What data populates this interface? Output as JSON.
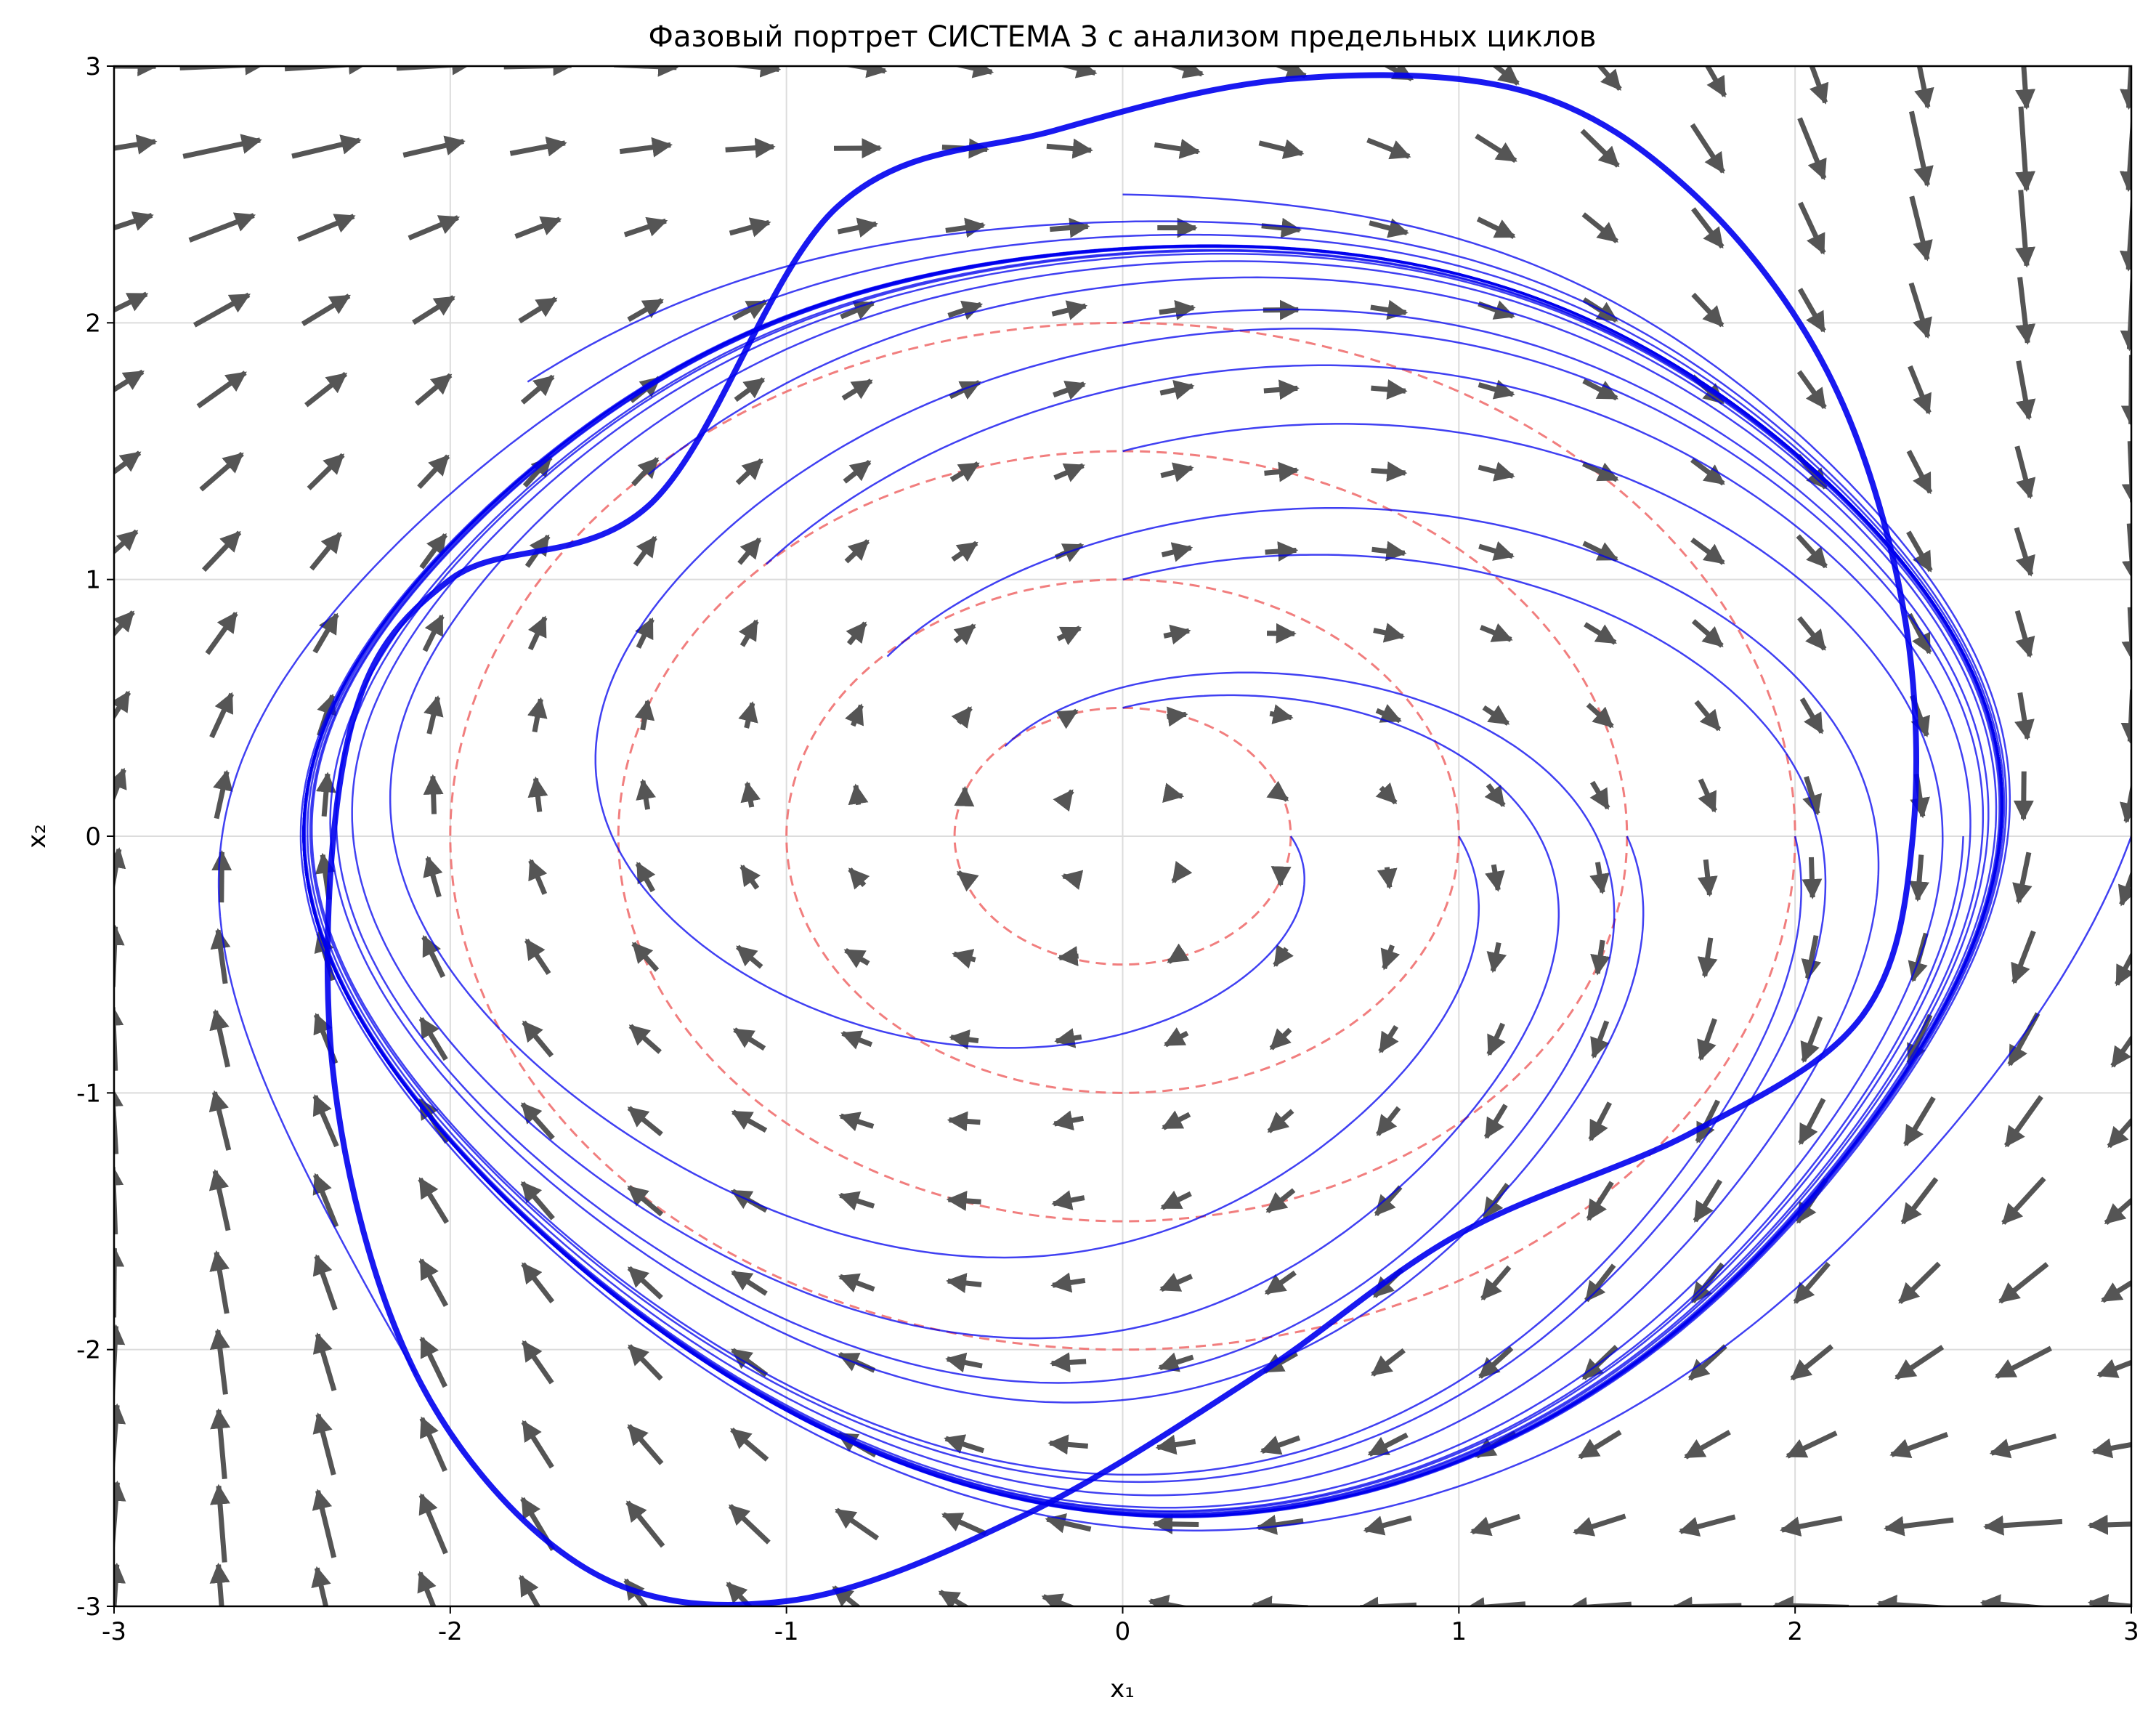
{
  "chart_data": {
    "type": "phase_portrait",
    "title": "Фазовый портрет СИСТЕМА 3 с анализом предельных циклов",
    "xlabel": "x₁",
    "ylabel": "x₂",
    "xlim": [
      -3,
      3
    ],
    "ylim": [
      -3,
      3
    ],
    "x_ticks": [
      -3,
      -2,
      -1,
      0,
      1,
      2,
      3
    ],
    "y_ticks": [
      -3,
      -2,
      -1,
      0,
      1,
      2,
      3
    ],
    "x_tick_labels": [
      "-3",
      "-2",
      "-1",
      "0",
      "1",
      "2",
      "3"
    ],
    "y_tick_labels": [
      "-3",
      "-2",
      "-1",
      "0",
      "1",
      "2",
      "3"
    ],
    "grid": true,
    "reference_circles": {
      "radii": [
        0.5,
        1.0,
        1.5,
        2.0
      ],
      "color": "#f07070",
      "style": "dashed"
    },
    "vector_field": {
      "color": "#555555",
      "grid_x": [
        -3.0,
        -2.68,
        -2.37,
        -2.05,
        -1.74,
        -1.42,
        -1.11,
        -0.79,
        -0.47,
        -0.16,
        0.16,
        0.47,
        0.79,
        1.11,
        1.42,
        1.74,
        2.05,
        2.37,
        2.68,
        3.0
      ],
      "grid_y": [
        -3.0,
        -2.68,
        -2.37,
        -2.05,
        -1.74,
        -1.42,
        -1.11,
        -0.79,
        -0.47,
        -0.16,
        0.16,
        0.47,
        0.79,
        1.11,
        1.42,
        1.74,
        2.05,
        2.37,
        2.68,
        3.0
      ]
    },
    "trajectories": {
      "color": "#0000ee",
      "initial_conditions": [
        [
          0.5,
          0
        ],
        [
          0,
          0.5
        ],
        [
          -0.35,
          0.35
        ],
        [
          1,
          0
        ],
        [
          0,
          1
        ],
        [
          -0.7,
          0.7
        ],
        [
          1.5,
          0
        ],
        [
          0,
          1.5
        ],
        [
          -1.06,
          1.06
        ],
        [
          2,
          0
        ],
        [
          0,
          2
        ],
        [
          -1.41,
          1.41
        ],
        [
          2.5,
          0
        ],
        [
          0,
          2.5
        ],
        [
          -1.77,
          1.77
        ],
        [
          3,
          0
        ],
        [
          -2.1,
          -2.1
        ]
      ]
    },
    "limit_cycle": {
      "x": [
        -0.85,
        -0.2,
        0.5,
        1.2,
        1.7,
        2.1,
        2.32,
        2.35,
        2.2,
        1.7,
        1.0,
        0.4,
        -0.3,
        -1.0,
        -1.6,
        -2.1,
        -2.35,
        -2.3,
        -2.0,
        -1.4,
        -0.85
      ],
      "y": [
        2.45,
        2.75,
        2.95,
        2.9,
        2.5,
        1.8,
        0.9,
        0.0,
        -0.7,
        -1.15,
        -1.55,
        -2.1,
        -2.65,
        -2.98,
        -2.85,
        -2.1,
        -0.9,
        0.4,
        1.0,
        1.3,
        2.45
      ],
      "color": "#0000ee"
    }
  }
}
